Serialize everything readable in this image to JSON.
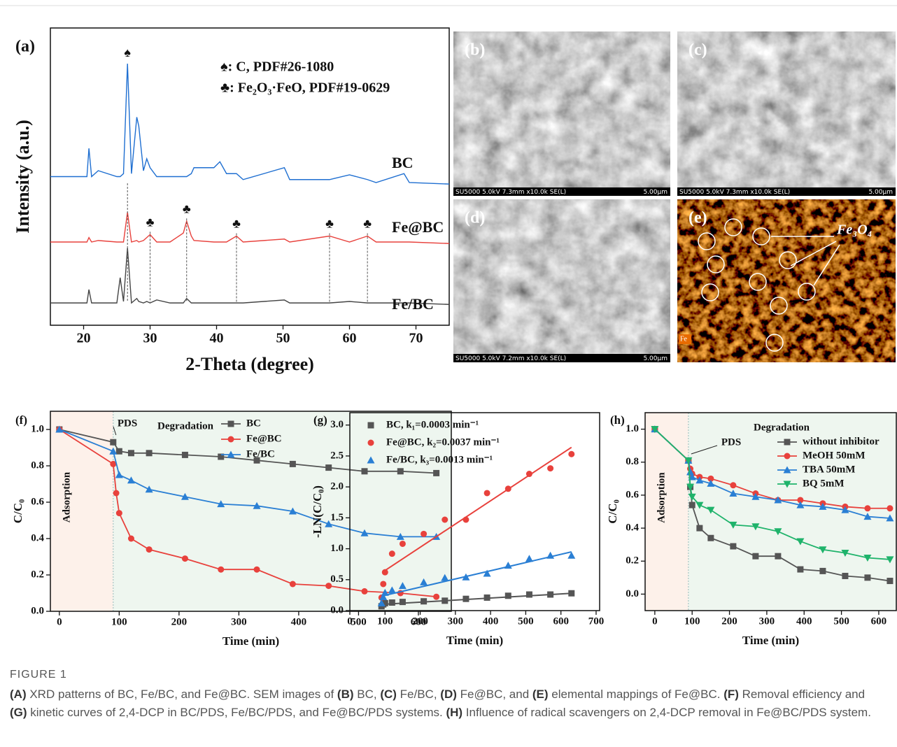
{
  "chart_data": [
    {
      "type": "line",
      "panel_label": "(a)",
      "x_label": "2-Theta (degree)",
      "y_label": "Intensity (a.u.)",
      "xlim": [
        15,
        75
      ],
      "xticks": [
        20,
        30,
        40,
        50,
        60,
        70
      ],
      "ylim": [
        0,
        100
      ],
      "x": [
        15,
        20.5,
        20.8,
        21.2,
        22.2,
        25,
        25.5,
        26,
        26.6,
        27.2,
        28,
        28.3,
        29,
        29.5,
        30,
        31,
        33,
        35,
        35.5,
        36.2,
        36.6,
        39.6,
        40.5,
        41.5,
        43,
        44,
        50.2,
        51,
        57,
        60,
        62.7,
        64,
        68.2,
        69,
        75
      ],
      "series": [
        {
          "name": "BC",
          "color": "#1f6fd1",
          "values": [
            50,
            50,
            59.5,
            50,
            52,
            50,
            50,
            51,
            88,
            51,
            70,
            67,
            52,
            56,
            53,
            50,
            50,
            50,
            50,
            51,
            53,
            53,
            55,
            51,
            51,
            49,
            53,
            49,
            49,
            50.6,
            49,
            48,
            51,
            48,
            47.5
          ]
        },
        {
          "name": "Fe@BC",
          "color": "#e8413c",
          "values": [
            28,
            28,
            29.5,
            28,
            28.5,
            28,
            28,
            28,
            38,
            28,
            28.5,
            28,
            28.5,
            29.5,
            30.5,
            28,
            28,
            31,
            35,
            30,
            28.5,
            28,
            28,
            28,
            30,
            28,
            29,
            28,
            30,
            28,
            30,
            28,
            28,
            28,
            27.5
          ]
        },
        {
          "name": "Fe/BC",
          "color": "#444444",
          "values": [
            7.5,
            7.5,
            12,
            7.5,
            7.5,
            7.5,
            16,
            8,
            26,
            7.5,
            9,
            8,
            7.5,
            8,
            7.5,
            8.5,
            7.5,
            7.5,
            9,
            7.5,
            7.5,
            7.5,
            7.5,
            7.5,
            7.5,
            7.5,
            8.5,
            7.5,
            7.5,
            8,
            7.5,
            7.5,
            7.5,
            7.5,
            7
          ]
        }
      ],
      "legend_entries": [
        "♠: C, PDF#26-1080",
        "♣: Fe₂O₃·FeO, PDF#19-0629"
      ],
      "peaks": [
        {
          "x": 26.6,
          "symbol": "♠"
        },
        {
          "x": 30,
          "symbol": "♣"
        },
        {
          "x": 35.5,
          "symbol": "♣"
        },
        {
          "x": 43,
          "symbol": "♣"
        },
        {
          "x": 57,
          "symbol": "♣"
        },
        {
          "x": 62.7,
          "symbol": "♣"
        }
      ]
    },
    {
      "type": "line",
      "panel_label": "(f)",
      "x_label": "Time (min)",
      "y_label": "C/C₀",
      "xlim": [
        -15,
        655
      ],
      "xticks": [
        0,
        100,
        200,
        300,
        400,
        500,
        600
      ],
      "ylim": [
        0,
        1.1
      ],
      "yticks": [
        {
          "value": 0,
          "label": "0.0"
        },
        0.2,
        0.4,
        0.6,
        0.8,
        {
          "value": 1,
          "label": "1.0"
        }
      ],
      "phase_boundary": 90,
      "phase_labels": [
        "Adsorption",
        "Degradation"
      ],
      "event_label": "PDS",
      "legend": "upper right",
      "series": [
        {
          "name": "BC",
          "color": "#555555",
          "marker": "square",
          "x": [
            0,
            90,
            100,
            120,
            150,
            210,
            270,
            330,
            390,
            450,
            510,
            570,
            630
          ],
          "values": [
            1.0,
            0.93,
            0.88,
            0.87,
            0.87,
            0.86,
            0.85,
            0.83,
            0.81,
            0.79,
            0.77,
            0.77,
            0.76
          ]
        },
        {
          "name": "Fe@BC",
          "color": "#e8413c",
          "marker": "circle",
          "x": [
            0,
            90,
            95,
            100,
            120,
            150,
            210,
            270,
            330,
            390,
            450,
            510,
            570,
            630
          ],
          "values": [
            1.0,
            0.81,
            0.65,
            0.54,
            0.4,
            0.34,
            0.29,
            0.23,
            0.23,
            0.15,
            0.14,
            0.11,
            0.1,
            0.08
          ]
        },
        {
          "name": "Fe/BC",
          "color": "#2a7fd4",
          "marker": "triangle",
          "x": [
            0,
            90,
            100,
            120,
            150,
            210,
            270,
            330,
            390,
            450,
            510,
            570,
            630
          ],
          "values": [
            1.0,
            0.88,
            0.75,
            0.72,
            0.67,
            0.63,
            0.59,
            0.58,
            0.55,
            0.48,
            0.43,
            0.41,
            0.41
          ]
        }
      ]
    },
    {
      "type": "scatter",
      "panel_label": "(g)",
      "x_label": "Time (min)",
      "y_label": "-LN(C/C₀)",
      "xlim": [
        0,
        710
      ],
      "xticks": [
        0,
        100,
        200,
        300,
        400,
        500,
        600,
        700
      ],
      "ylim": [
        0,
        3.2
      ],
      "yticks": [
        {
          "value": 0,
          "label": "0.0"
        },
        0.5,
        {
          "value": 1,
          "label": "1.0"
        },
        1.5,
        {
          "value": 2,
          "label": "2.0"
        },
        2.5,
        {
          "value": 3,
          "label": "3.0"
        }
      ],
      "legend": "upper left",
      "series": [
        {
          "name": "BC, k₁=0.0003 min⁻¹",
          "color": "#555555",
          "marker": "square",
          "x": [
            90,
            95,
            100,
            120,
            150,
            210,
            270,
            330,
            390,
            450,
            510,
            570,
            630
          ],
          "values": [
            0.07,
            0.1,
            0.12,
            0.13,
            0.14,
            0.15,
            0.16,
            0.19,
            0.21,
            0.24,
            0.26,
            0.26,
            0.28
          ],
          "fit_x": [
            90,
            630
          ],
          "fit_values": [
            0.1,
            0.28
          ]
        },
        {
          "name": "Fe@BC, k₂=0.0037 min⁻¹",
          "color": "#e8413c",
          "marker": "circle",
          "x": [
            90,
            95,
            100,
            120,
            150,
            210,
            270,
            330,
            390,
            450,
            510,
            570,
            630
          ],
          "values": [
            0.21,
            0.43,
            0.62,
            0.92,
            1.08,
            1.24,
            1.47,
            1.47,
            1.9,
            1.97,
            2.21,
            2.3,
            2.53
          ],
          "fit_x": [
            95,
            630
          ],
          "fit_values": [
            0.63,
            2.64
          ]
        },
        {
          "name": "Fe/BC, k₃=0.0013 min⁻¹",
          "color": "#2a7fd4",
          "marker": "triangle",
          "x": [
            90,
            95,
            100,
            120,
            150,
            210,
            270,
            330,
            390,
            450,
            510,
            570,
            630
          ],
          "values": [
            0.12,
            0.22,
            0.29,
            0.33,
            0.4,
            0.46,
            0.53,
            0.54,
            0.6,
            0.73,
            0.84,
            0.89,
            0.89
          ],
          "fit_x": [
            95,
            630
          ],
          "fit_values": [
            0.24,
            0.95
          ]
        }
      ]
    },
    {
      "type": "line",
      "panel_label": "(h)",
      "x_label": "Time (min)",
      "y_label": "C/C₀",
      "xlim": [
        -26,
        647
      ],
      "xticks": [
        0,
        100,
        200,
        300,
        400,
        500,
        600
      ],
      "ylim": [
        -0.1,
        1.1
      ],
      "yticks": [
        {
          "value": 0,
          "label": "0.0"
        },
        0.2,
        0.4,
        0.6,
        0.8,
        {
          "value": 1,
          "label": "1.0"
        }
      ],
      "phase_boundary": 90,
      "phase_labels": [
        "Adsorption",
        "Degradation"
      ],
      "event_label": "PDS",
      "legend": "upper right",
      "series": [
        {
          "name": "without inhibitor",
          "color": "#555555",
          "marker": "square",
          "x": [
            0,
            90,
            95,
            100,
            120,
            150,
            210,
            270,
            330,
            390,
            450,
            510,
            570,
            630
          ],
          "values": [
            1.0,
            0.81,
            0.65,
            0.54,
            0.4,
            0.34,
            0.29,
            0.23,
            0.23,
            0.15,
            0.14,
            0.11,
            0.1,
            0.08
          ]
        },
        {
          "name": "MeOH 50mM",
          "color": "#e8413c",
          "marker": "circle",
          "x": [
            0,
            90,
            95,
            100,
            120,
            150,
            210,
            270,
            330,
            390,
            450,
            510,
            570,
            630
          ],
          "values": [
            1.0,
            0.81,
            0.76,
            0.73,
            0.71,
            0.7,
            0.66,
            0.61,
            0.57,
            0.57,
            0.55,
            0.53,
            0.52,
            0.52
          ]
        },
        {
          "name": "TBA 50mM",
          "color": "#2a7fd4",
          "marker": "triangle",
          "x": [
            0,
            90,
            95,
            100,
            120,
            150,
            210,
            270,
            330,
            390,
            450,
            510,
            570,
            630
          ],
          "values": [
            1.0,
            0.81,
            0.74,
            0.71,
            0.69,
            0.67,
            0.61,
            0.59,
            0.57,
            0.54,
            0.53,
            0.51,
            0.47,
            0.46
          ]
        },
        {
          "name": "BQ 5mM",
          "color": "#1fb36b",
          "marker": "triangle-down",
          "x": [
            0,
            90,
            95,
            100,
            120,
            150,
            210,
            270,
            330,
            390,
            450,
            510,
            570,
            630
          ],
          "values": [
            1.0,
            0.81,
            0.65,
            0.59,
            0.54,
            0.51,
            0.42,
            0.41,
            0.38,
            0.32,
            0.27,
            0.25,
            0.22,
            0.21
          ]
        }
      ]
    }
  ],
  "images": [
    {
      "label": "(b)",
      "info": "SU5000 5.0kV 7.3mm x10.0k SE(L)",
      "scale": "5.00μm"
    },
    {
      "label": "(c)",
      "info": "SU5000 5.0kV 7.3mm x10.0k SE(L)",
      "scale": "5.00μm"
    },
    {
      "label": "(d)",
      "info": "SU5000 5.0kV 7.2mm x10.0k SE(L)",
      "scale": "5.00μm"
    },
    {
      "label": "(e)",
      "annotation": "Fe₃O₄",
      "element": "Fe"
    }
  ],
  "figure": {
    "title": "FIGURE 1",
    "caption": [
      {
        "text": "(A)",
        "bold": true
      },
      {
        "text": " XRD patterns of BC, Fe/BC, and Fe@BC. SEM images of "
      },
      {
        "text": "(B)",
        "bold": true
      },
      {
        "text": " BC, "
      },
      {
        "text": "(C)",
        "bold": true
      },
      {
        "text": " Fe/BC, "
      },
      {
        "text": "(D)",
        "bold": true
      },
      {
        "text": " Fe@BC, and "
      },
      {
        "text": "(E)",
        "bold": true
      },
      {
        "text": " elemental mappings of Fe@BC. "
      },
      {
        "text": "(F)",
        "bold": true
      },
      {
        "text": " Removal efficiency and "
      },
      {
        "text": "(G)",
        "bold": true
      },
      {
        "text": " kinetic curves of 2,4-DCP in BC/PDS, Fe/BC/PDS, and Fe@BC/PDS systems. "
      },
      {
        "text": "(H)",
        "bold": true
      },
      {
        "text": " Influence of radical scavengers on 2,4-DCP removal in Fe@BC/PDS system."
      }
    ]
  }
}
